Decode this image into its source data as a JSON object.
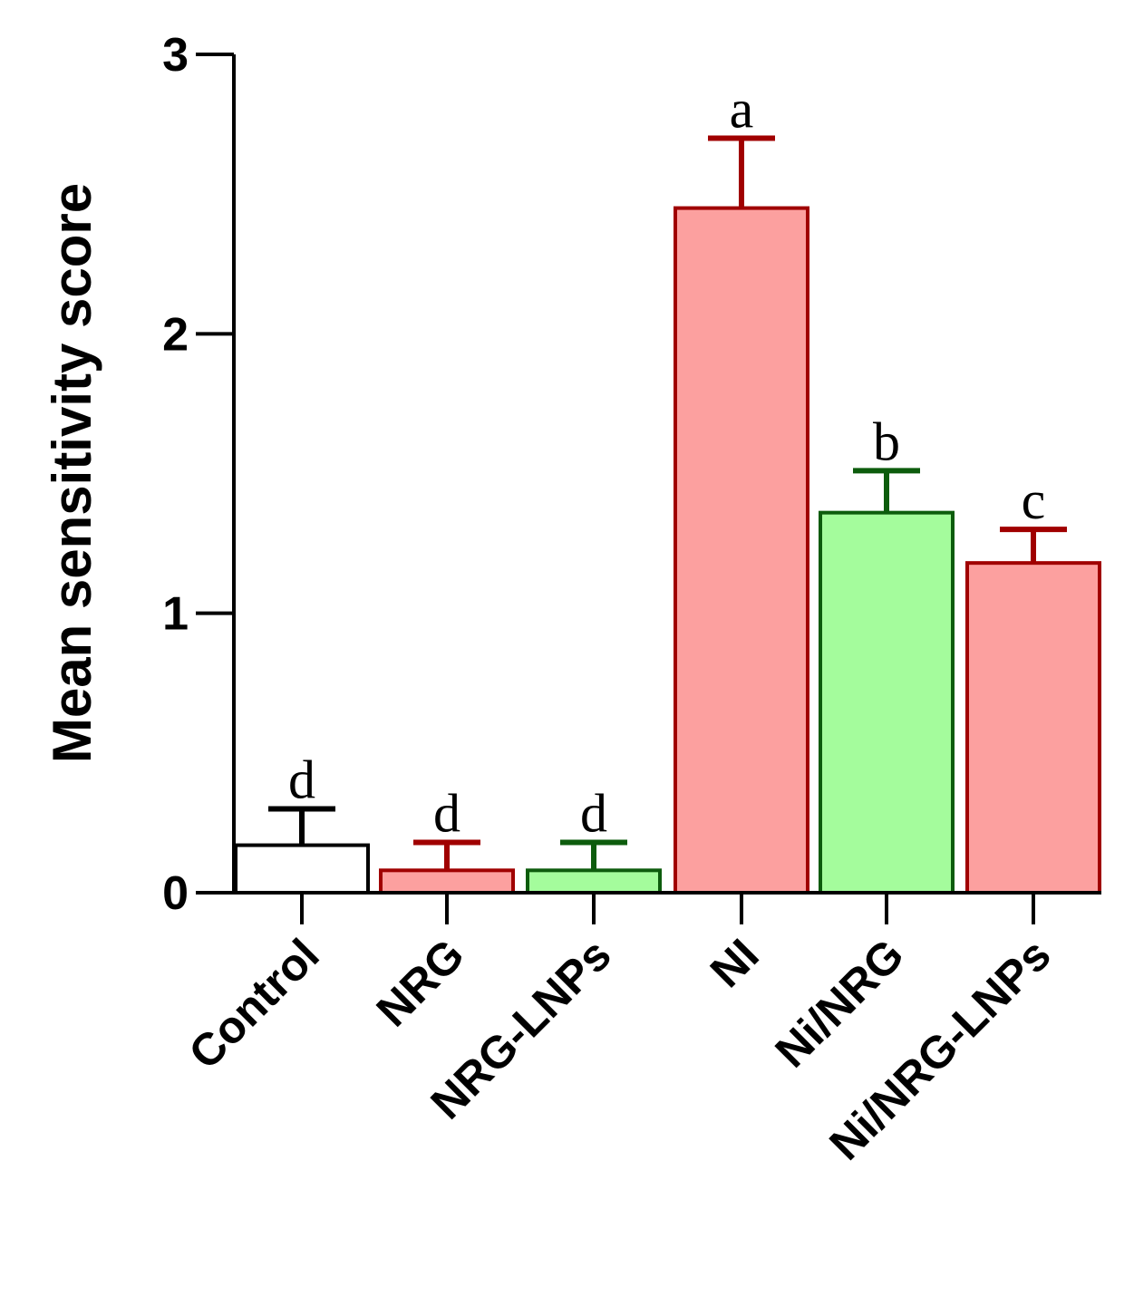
{
  "chart_data": {
    "type": "bar",
    "title": "",
    "xlabel": "",
    "ylabel": "Mean sensitivity score",
    "ylim": [
      0,
      3
    ],
    "yticks": [
      "0",
      "1",
      "2",
      "3"
    ],
    "grid": false,
    "legend": "none",
    "categories": [
      "Control",
      "NRG",
      "NRG-LNPs",
      "NI",
      "Ni/NRG",
      "Ni/NRG-LNPs"
    ],
    "values": [
      0.17,
      0.08,
      0.08,
      2.45,
      1.36,
      1.18
    ],
    "error": [
      0.13,
      0.1,
      0.1,
      0.25,
      0.15,
      0.12
    ],
    "significance_letters": [
      "d",
      "d",
      "d",
      "a",
      "b",
      "c"
    ],
    "colors": {
      "fill": [
        "#ffffff",
        "#fca09f",
        "#a4fc9c",
        "#fca09f",
        "#a4fc9c",
        "#fca09f"
      ],
      "stroke": [
        "#000000",
        "#a00000",
        "#0d5c0d",
        "#a00000",
        "#0d5c0d",
        "#a00000"
      ],
      "axis": "#000000"
    }
  }
}
